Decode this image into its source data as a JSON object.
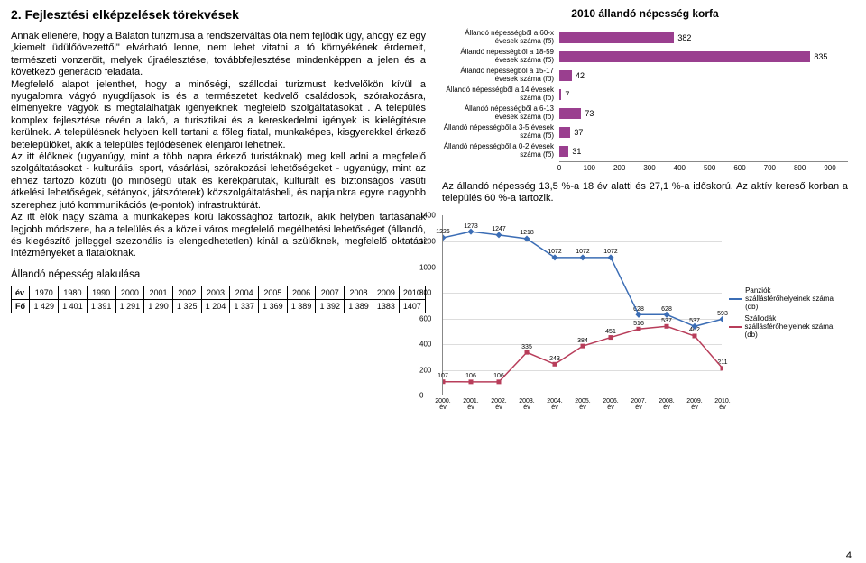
{
  "left": {
    "title": "2. Fejlesztési elképzelések törekvések",
    "p1": "Annak ellenére, hogy a Balaton turizmusa a rendszerváltás óta nem fejlődik úgy, ahogy ez egy „kiemelt üdülőövezettől\" elvárható lenne, nem lehet vitatni a tó környékének érdemeit, természeti vonzeröit, melyek újraélesztése, továbbfejlesztése mindenképpen a jelen és a következő generáció feladata.",
    "p2": "Megfelelő alapot jelenthet, hogy a minőségi, szállodai turizmust kedvelőkön kívül a nyugalomra vágyó nyugdíjasok is és a természetet kedvelő családosok, szórakozásra, élményekre vágyók is megtalálhatják igényeiknek megfelelő szolgáltatásokat . A település komplex fejlesztése révén a lakó, a turisztikai és a kereskedelmi igények is kielégítésre kerülnek. A településnek helyben kell tartani a főleg fiatal, munkaképes, kisgyerekkel érkező betelepülőket, akik a település fejlődésének élenjárói lehetnek.",
    "p3": "Az itt élőknek (ugyanúgy, mint a több napra érkező turistáknak) meg kell adni a megfelelő szolgáltatásokat - kulturális, sport, vásárlási, szórakozási lehetőségeket - ugyanúgy, mint az ehhez tartozó közúti (jó minőségű utak és kerékpárutak, kulturált és biztonságos vasúti átkelési lehetőségek, sétányok, játszóterek) közszolgáltatásbeli, és napjainkra egyre nagyobb szerephez jutó kommunikációs (e-pontok) infrastruktúrát.",
    "p4": "Az itt élők nagy száma a munkaképes korú lakossághoz tartozik, akik helyben tartásának legjobb módszere, ha a teleülés és a közeli város megfelelő megélhetési lehetőséget (állandó, és kiegészítő jelleggel szezonális is elengedhetetlen) kínál a szülőknek, megfelelő oktatási intézményeket a fiataloknak.",
    "subTitle": "Állandó népesség alakulása",
    "table": {
      "rowLabels": [
        "év",
        "Fő"
      ],
      "years": [
        "1970",
        "1980",
        "1990",
        "2000",
        "2001",
        "2002",
        "2003",
        "2004",
        "2005",
        "2006",
        "2007",
        "2008",
        "2009",
        "2010"
      ],
      "values": [
        "1 429",
        "1 401",
        "1 391",
        "1 291",
        "1 290",
        "1 325",
        "1 204",
        "1 337",
        "1 369",
        "1 389",
        "1 392",
        "1 389",
        "1383",
        "1407"
      ]
    }
  },
  "chart1": {
    "title": "2010 állandó népesség korfa",
    "color": "#9a3f8f",
    "axisColor": "#888888",
    "xmax": 900,
    "xtick": 100,
    "rows": [
      {
        "label": "Állandó népességből a 60-x évesek száma (fő)",
        "value": 382
      },
      {
        "label": "Állandó népességből a 18-59 évesek száma (fő)",
        "value": 835
      },
      {
        "label": "Állandó népességből a 15-17 évesek száma (fő)",
        "value": 42
      },
      {
        "label": "Állandó népességből a 14 évesek száma (fő)",
        "value": 7
      },
      {
        "label": "Állandó népességből a 6-13 évesek száma (fő)",
        "value": 73
      },
      {
        "label": "Állandó népességből a 3-5 évesek száma (fő)",
        "value": 37
      },
      {
        "label": "Állandó népességből a 0-2 évesek száma (fő)",
        "value": 31
      }
    ],
    "caption": "Az állandó népesség 13,5 %-a 18 év alatti és 27,1 %-a időskorú. Az aktív kereső korban a település 60 %-a tartozik."
  },
  "chart2": {
    "ymax": 1400,
    "ystep": 200,
    "plotW": 310,
    "plotH": 200,
    "series": [
      {
        "name": "Panziók szállásférőhelyeinek száma (db)",
        "color": "#3b6db5",
        "marker": "diamond",
        "points": [
          1226,
          1273,
          1247,
          1218,
          1072,
          1072,
          1072,
          628,
          628,
          537,
          593
        ]
      },
      {
        "name": "Szállodák szállásférőhelyeinek száma (db)",
        "color": "#b83d5a",
        "marker": "square",
        "points": [
          107,
          106,
          106,
          335,
          243,
          384,
          451,
          516,
          537,
          462,
          211
        ]
      }
    ],
    "xlabels": [
      "2000. év",
      "2001. év",
      "2002. év",
      "2003. év",
      "2004. év",
      "2005. év",
      "2006. év",
      "2007. év",
      "2008. év",
      "2009. év",
      "2010. év"
    ]
  },
  "pageNum": "4"
}
